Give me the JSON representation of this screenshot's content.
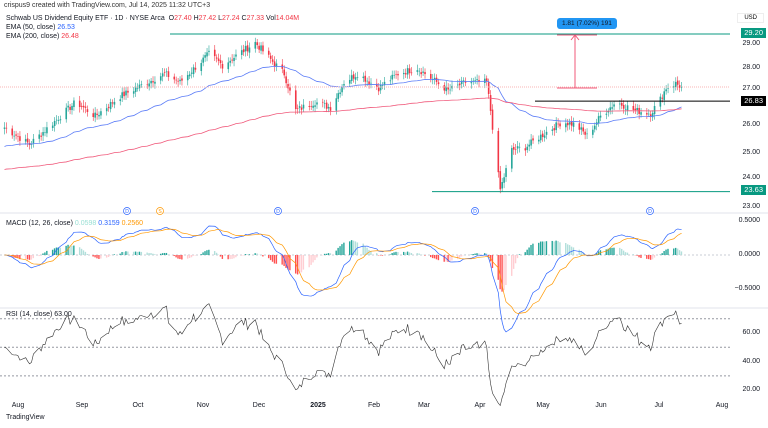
{
  "credit": "crispus9 created with TradingView.com, Jul 14, 2025 11:32 UTC+3",
  "legend": {
    "symbol": "Schwab US Dividend Equity ETF · 1D · NYSE Arca",
    "o_label": "O",
    "o": "27.40",
    "h_label": "H",
    "h": "27.42",
    "l_label": "L",
    "l": "27.24",
    "c_label": "C",
    "c": "27.33",
    "vol_label": "Vol",
    "vol": "14.04M",
    "ema50_label": "EMA (50, close)",
    "ema50": "26.53",
    "ema200_label": "EMA (200, close)",
    "ema200": "26.48"
  },
  "currency": "USD",
  "price_ticks": [
    "29.00",
    "28.00",
    "27.00",
    "26.00",
    "25.00",
    "24.00",
    "23.00"
  ],
  "price_tags": {
    "high": "29.20",
    "mid": "26.83",
    "low": "23.63"
  },
  "measure_label": "1.81 (7.02%) 191",
  "macd": {
    "label": "MACD (12, 26, close)",
    "hist": "0.0598",
    "macd": "0.3159",
    "signal": "0.2560",
    "ticks": [
      "0.5000",
      "0.0000",
      "−0.5000"
    ]
  },
  "rsi": {
    "label": "RSI (14, close)",
    "value": "63.00",
    "ticks": [
      "60.00",
      "40.00",
      "20.00"
    ]
  },
  "x_ticks": [
    "Aug",
    "Sep",
    "Oct",
    "Nov",
    "Dec",
    "2025",
    "Feb",
    "Mar",
    "Apr",
    "May",
    "Jun",
    "Jul",
    "Aug"
  ],
  "event_markers": [
    "D",
    "S",
    "D",
    "D",
    "D"
  ],
  "logo": "TradingView",
  "colors": {
    "up": "#26a69a",
    "down": "#f23645",
    "ema50": "#5b7cf7",
    "ema200": "#f0587a",
    "macd": "#2962ff",
    "signal": "#ff9800"
  },
  "chart_data": {
    "type": "candlestick",
    "ylabel": "USD",
    "ylim": [
      22.8,
      29.5
    ],
    "close": [
      [
        "2024-07-25",
        25.9
      ],
      [
        "2024-08-07",
        25.3
      ],
      [
        "2024-08-31",
        26.8
      ],
      [
        "2024-09-10",
        26.3
      ],
      [
        "2024-09-23",
        27.0
      ],
      [
        "2024-10-16",
        27.8
      ],
      [
        "2024-10-24",
        27.5
      ],
      [
        "2024-11-08",
        28.5
      ],
      [
        "2024-11-15",
        28.1
      ],
      [
        "2024-12-02",
        28.9
      ],
      [
        "2024-12-10",
        28.3
      ],
      [
        "2024-12-17",
        27.8
      ],
      [
        "2024-12-23",
        26.5
      ],
      [
        "2025-01-02",
        26.8
      ],
      [
        "2025-01-10",
        26.6
      ],
      [
        "2025-01-17",
        27.5
      ],
      [
        "2025-01-24",
        27.8
      ],
      [
        "2025-02-04",
        27.3
      ],
      [
        "2025-02-14",
        27.8
      ],
      [
        "2025-02-24",
        28.0
      ],
      [
        "2025-03-12",
        27.2
      ],
      [
        "2025-03-21",
        27.5
      ],
      [
        "2025-04-01",
        27.5
      ],
      [
        "2025-04-03",
        26.5
      ],
      [
        "2025-04-07",
        24.2
      ],
      [
        "2025-04-08",
        23.7
      ],
      [
        "2025-04-14",
        25.1
      ],
      [
        "2025-04-21",
        25.2
      ],
      [
        "2025-04-29",
        25.6
      ],
      [
        "2025-05-10",
        26.1
      ],
      [
        "2025-05-17",
        26.0
      ],
      [
        "2025-05-23",
        25.6
      ],
      [
        "2025-05-30",
        26.3
      ],
      [
        "2025-06-07",
        26.8
      ],
      [
        "2025-06-17",
        26.5
      ],
      [
        "2025-06-25",
        26.4
      ],
      [
        "2025-06-30",
        26.9
      ],
      [
        "2025-07-03",
        27.3
      ],
      [
        "2025-07-08",
        27.45
      ],
      [
        "2025-07-11",
        27.33
      ]
    ],
    "levels": [
      29.2,
      26.83,
      23.63
    ]
  }
}
